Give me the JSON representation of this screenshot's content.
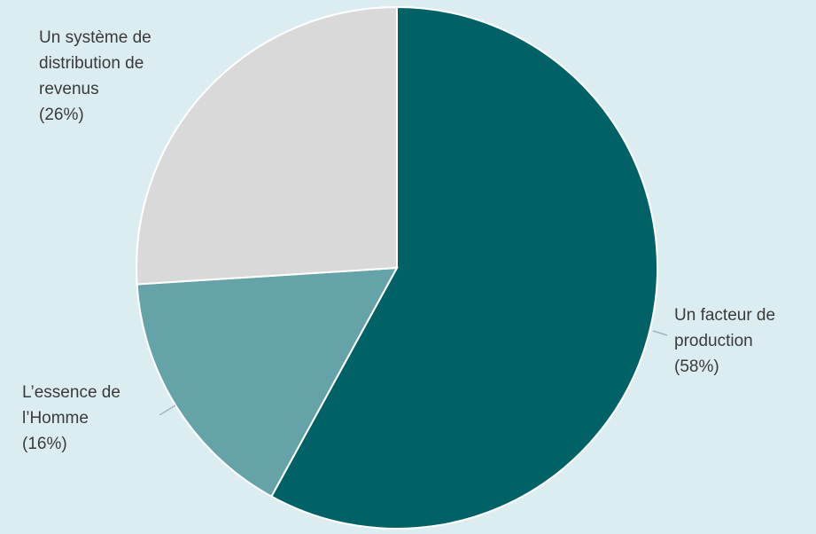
{
  "chart_data": {
    "type": "pie",
    "title": "",
    "start_angle_deg": 0,
    "direction": "clockwise",
    "slices": [
      {
        "label_lines": [
          "Un facteur de",
          "production",
          "(58%)"
        ],
        "value": 58,
        "color": "#006166"
      },
      {
        "label_lines": [
          "L’essence de",
          "l’Homme",
          "(16%)"
        ],
        "value": 16,
        "color": "#66a3a9"
      },
      {
        "label_lines": [
          "Un système de",
          "distribution de",
          "revenus",
          "(26%)"
        ],
        "value": 26,
        "color": "#d9d9d9"
      }
    ]
  }
}
